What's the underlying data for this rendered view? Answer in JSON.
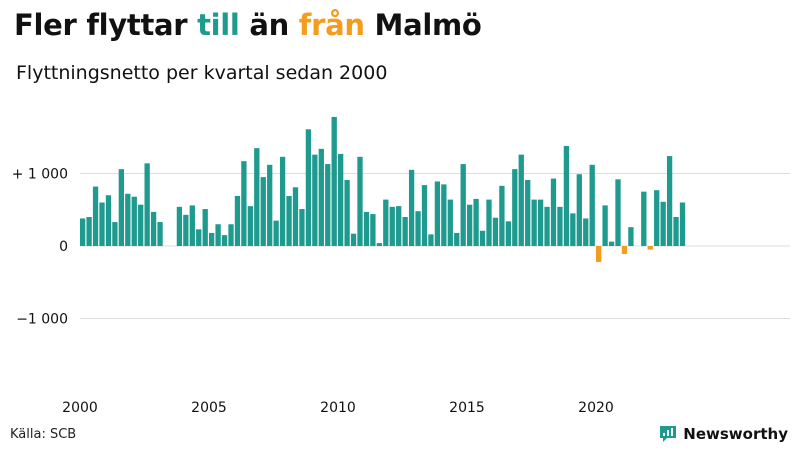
{
  "header": {
    "title_part1": "Fler flyttar ",
    "title_part2": "till",
    "title_part3": " än ",
    "title_part4": "från",
    "title_part5": " Malmö",
    "subtitle": "Flyttningsnetto per kvartal sedan 2000"
  },
  "footer": {
    "source": "Källa: SCB",
    "brand": "Newsworthy"
  },
  "colors": {
    "positive": "#1e9a8e",
    "negative": "#f39c1e",
    "grid": "#dddddd",
    "text": "#111111",
    "brand": "#1e9a8e"
  },
  "chart_data": {
    "type": "bar",
    "title": "Fler flyttar till än från Malmö",
    "subtitle": "Flyttningsnetto per kvartal sedan 2000",
    "xlabel": "",
    "ylabel": "",
    "x_start_year": 2000,
    "periods_per_year": 4,
    "x_ticks": [
      "2000",
      "2005",
      "2010",
      "2015",
      "2020"
    ],
    "y_ticks": [
      {
        "value": 1000,
        "label": "+ 1 000"
      },
      {
        "value": 0,
        "label": "0"
      },
      {
        "value": -1000,
        "label": "−1 000"
      }
    ],
    "ylim": [
      -1800,
      1900
    ],
    "grid": true,
    "values": [
      380,
      400,
      820,
      600,
      700,
      330,
      1060,
      720,
      680,
      570,
      1140,
      470,
      330,
      0,
      0,
      540,
      430,
      560,
      230,
      510,
      180,
      300,
      150,
      300,
      690,
      1170,
      550,
      1350,
      950,
      1120,
      350,
      1230,
      690,
      810,
      510,
      1610,
      1260,
      1340,
      1130,
      1780,
      1270,
      910,
      170,
      1230,
      470,
      440,
      40,
      640,
      540,
      550,
      400,
      1050,
      480,
      840,
      160,
      890,
      850,
      640,
      180,
      1130,
      570,
      650,
      210,
      640,
      390,
      830,
      340,
      1060,
      1260,
      910,
      640,
      640,
      540,
      930,
      540,
      1380,
      450,
      990,
      380,
      1120,
      -220,
      560,
      60,
      920,
      -110,
      260,
      0,
      750,
      -50,
      770,
      610,
      1240,
      400,
      600
    ]
  }
}
